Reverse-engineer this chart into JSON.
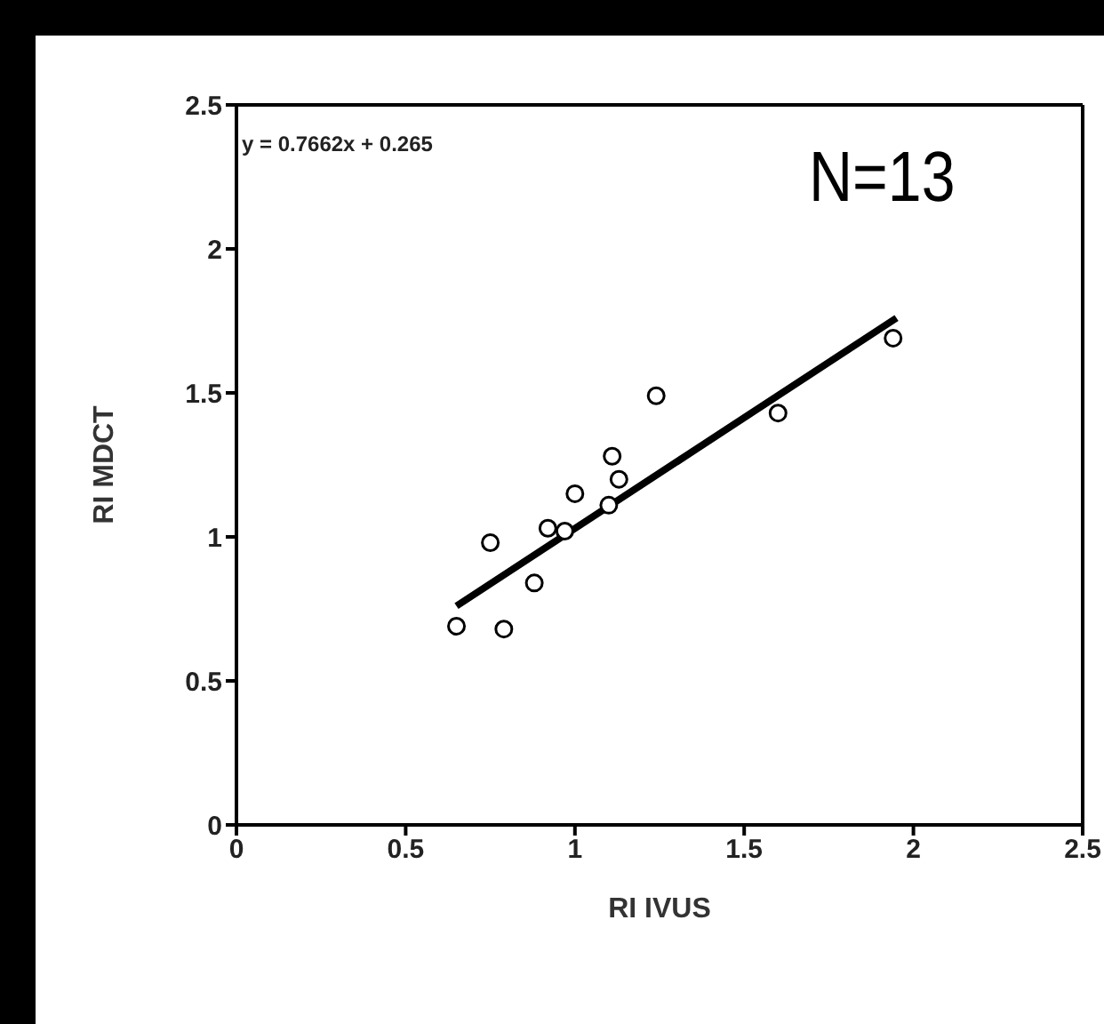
{
  "chart_data": {
    "type": "scatter",
    "xlabel": "RI IVUS",
    "ylabel": "RI MDCT",
    "annotations": [
      "y = 0.7662x + 0.265",
      "N=13"
    ],
    "xlim": [
      0,
      2.5
    ],
    "xticks": [
      0,
      0.5,
      1,
      1.5,
      2,
      2.5
    ],
    "ylim": [
      0,
      2.5
    ],
    "yticks": [
      0,
      0.5,
      1,
      1.5,
      2,
      2.5
    ],
    "marker": "circle",
    "series": [
      {
        "color": "#000000",
        "x": [
          0.65,
          0.79,
          0.75,
          0.88,
          0.92,
          0.97,
          1.0,
          1.1,
          1.13,
          1.11,
          1.24,
          1.6,
          1.94
        ],
        "values": [
          0.69,
          0.68,
          0.98,
          0.84,
          1.03,
          1.02,
          1.15,
          1.11,
          1.2,
          1.28,
          1.49,
          1.43,
          1.69
        ]
      },
      {
        "type": "line",
        "marker": "none",
        "color": "#000000",
        "x": [
          0.65,
          1.95
        ],
        "values": [
          0.76,
          1.76
        ]
      }
    ]
  }
}
